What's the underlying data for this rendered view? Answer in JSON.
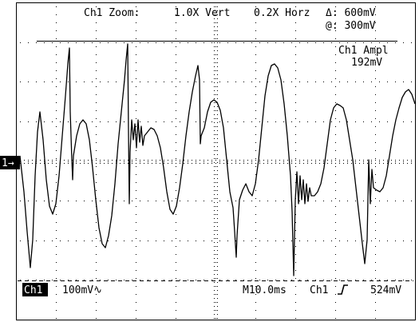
{
  "header": {
    "zoom_label": "Ch1 Zoom:",
    "vert_zoom": "1.0X Vert",
    "horz_zoom": "0.2X Horz",
    "delta_label": "Δ: 600mV",
    "at_label": "@: 300mV"
  },
  "measurement": {
    "name": "Ch1 Ampl",
    "value": "192mV"
  },
  "channel_marker": "1→",
  "footer": {
    "channel": "Ch1",
    "volts_per_div": "100mV∿",
    "timebase": "M10.0ms",
    "trigger_channel": "Ch1",
    "trigger_slope_icon": "rising-edge-icon",
    "trigger_level": "524mV"
  }
}
